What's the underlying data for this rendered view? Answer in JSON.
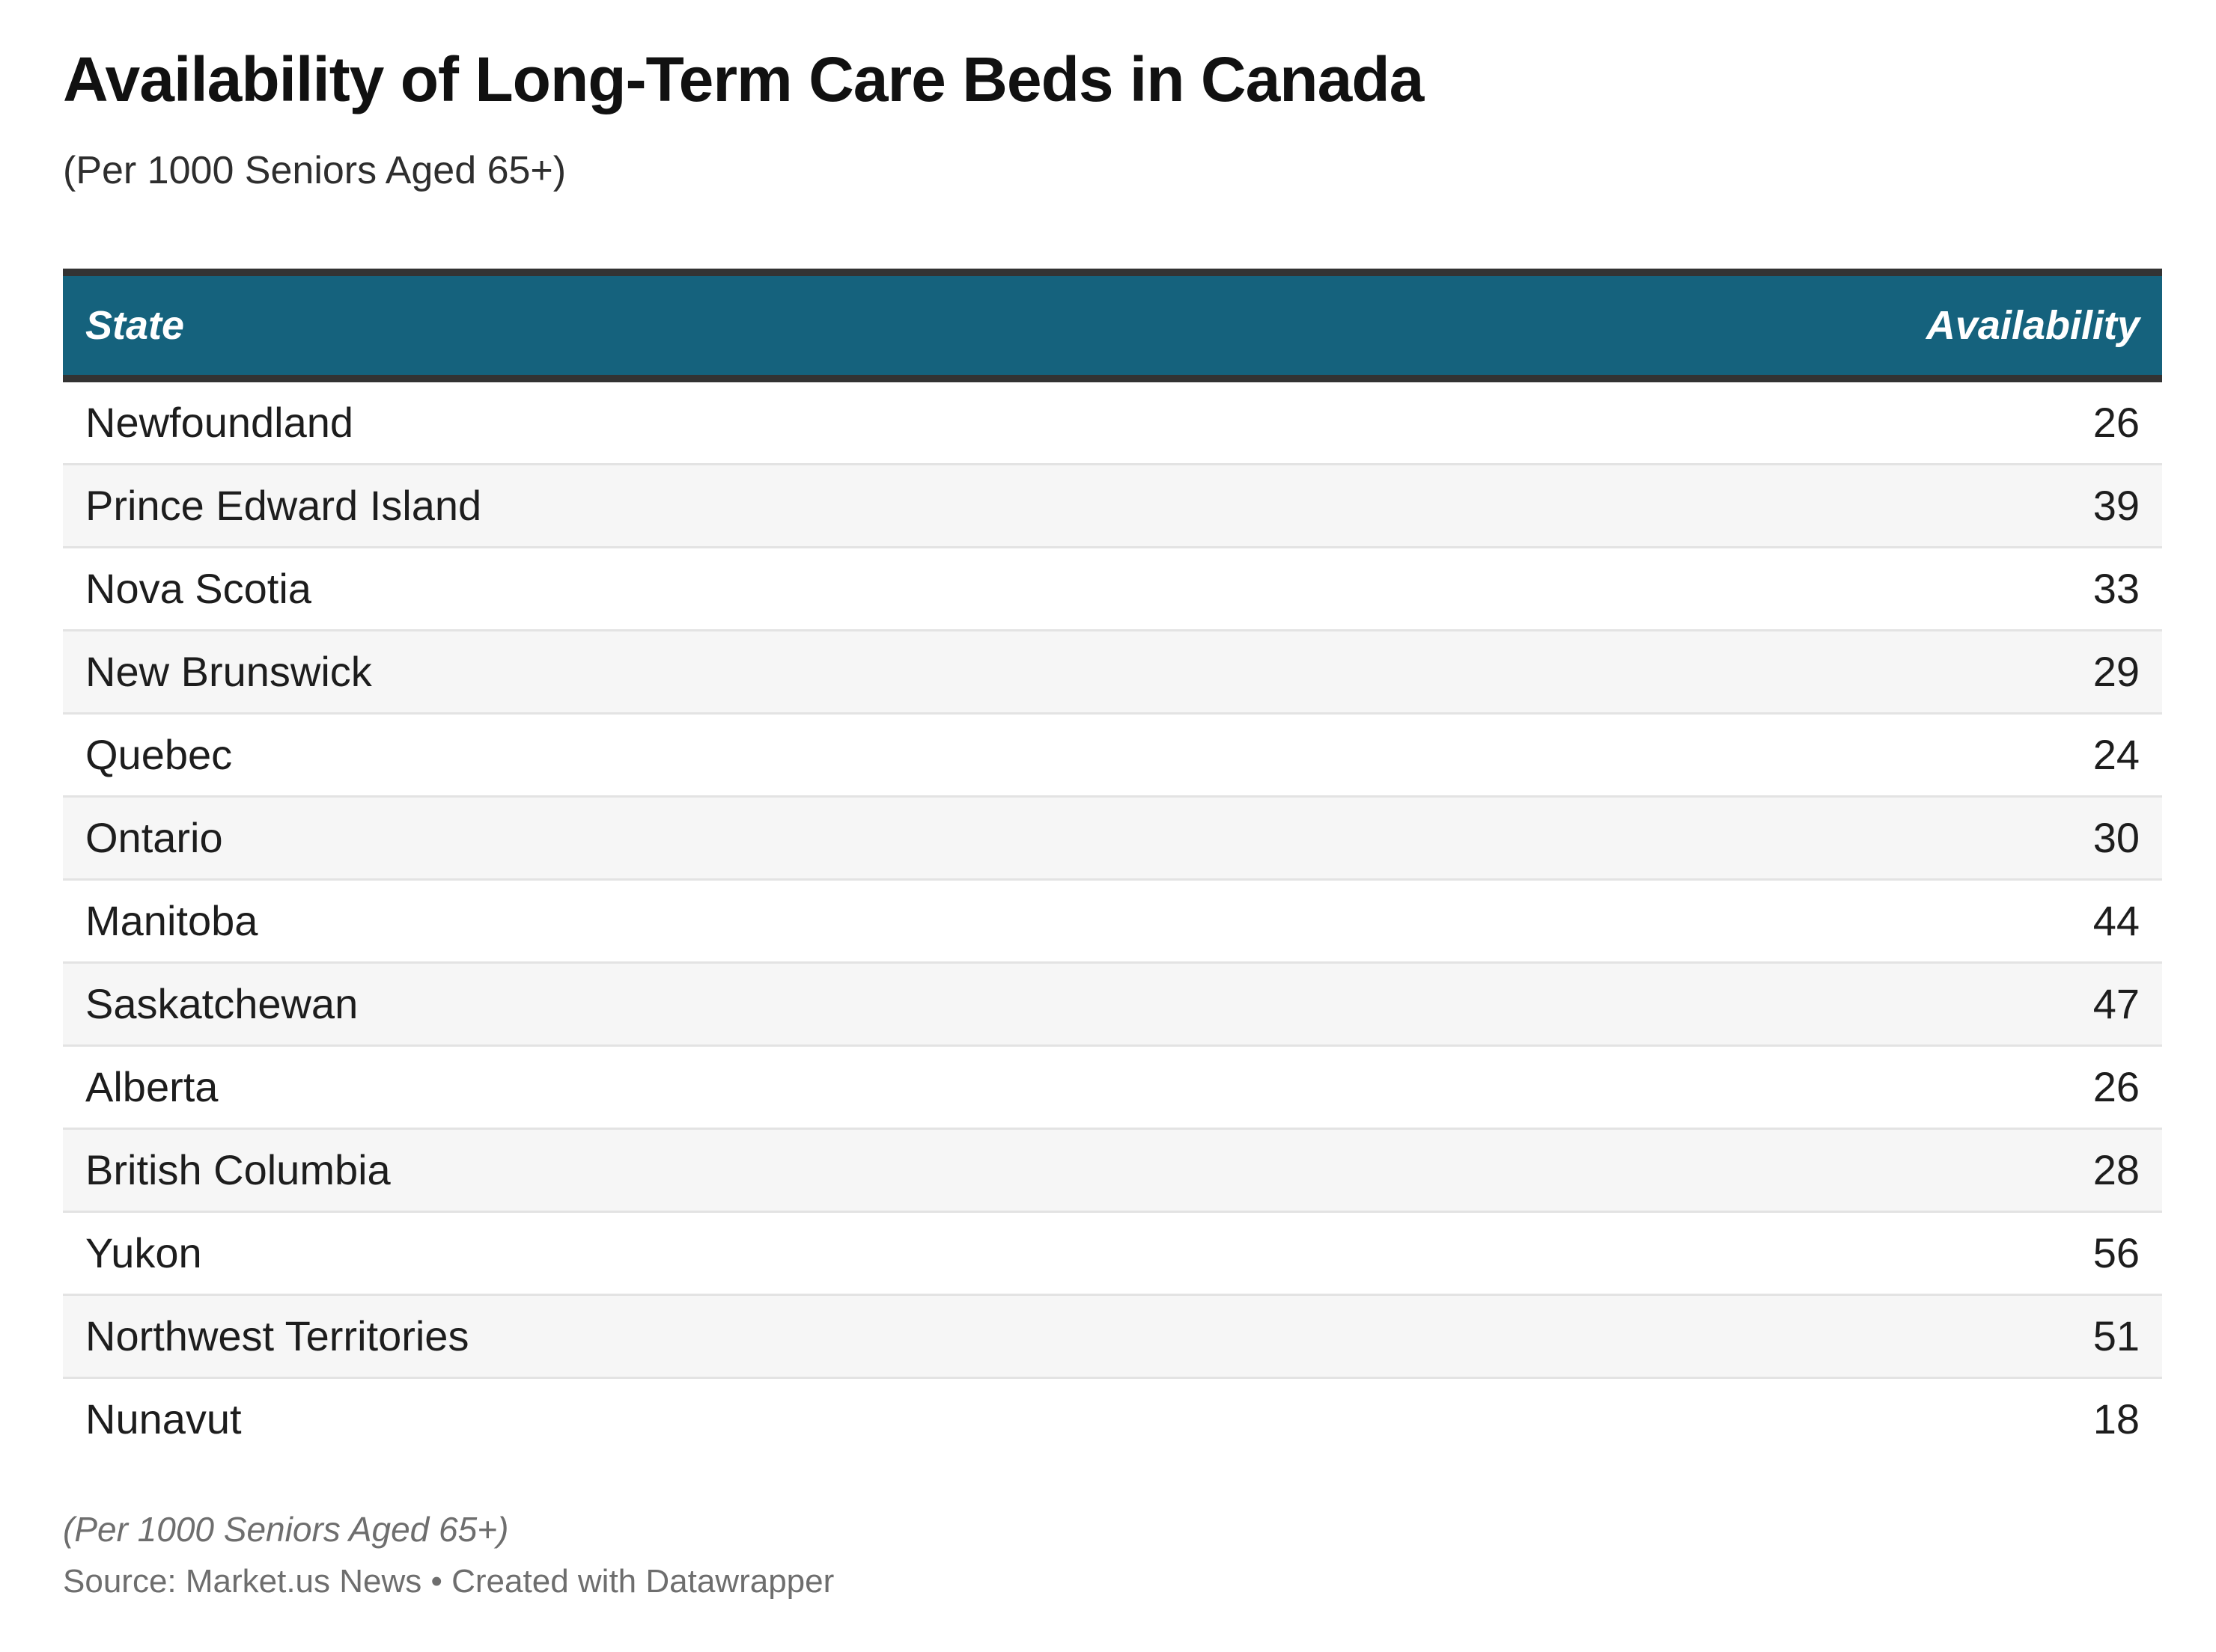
{
  "header": {
    "title": "Availability of Long-Term Care Beds in Canada",
    "subtitle": "(Per 1000 Seniors Aged 65+)"
  },
  "table": {
    "columns": [
      "State",
      "Availability"
    ],
    "rows": [
      {
        "state": "Newfoundland",
        "value": "26"
      },
      {
        "state": "Prince Edward Island",
        "value": "39"
      },
      {
        "state": "Nova Scotia",
        "value": "33"
      },
      {
        "state": "New Brunswick",
        "value": "29"
      },
      {
        "state": "Quebec",
        "value": "24"
      },
      {
        "state": "Ontario",
        "value": "30"
      },
      {
        "state": "Manitoba",
        "value": "44"
      },
      {
        "state": "Saskatchewan",
        "value": "47"
      },
      {
        "state": "Alberta",
        "value": "26"
      },
      {
        "state": "British Columbia",
        "value": "28"
      },
      {
        "state": "Yukon",
        "value": "56"
      },
      {
        "state": "Northwest Territories",
        "value": "51"
      },
      {
        "state": "Nunavut",
        "value": "18"
      }
    ]
  },
  "footer": {
    "note": "(Per 1000 Seniors Aged 65+)",
    "source": "Source: Market.us News • Created with Datawrapper"
  },
  "colors": {
    "header_bg": "#15627D",
    "header_border": "#333333",
    "alt_row_bg": "#F6F6F6",
    "row_divider": "#E3E3E3",
    "body_text": "#1D1D1D",
    "muted_text": "#6E6E6E"
  },
  "chart_data": {
    "type": "table",
    "title": "Availability of Long-Term Care Beds in Canada",
    "subtitle": "(Per 1000 Seniors Aged 65+)",
    "columns": [
      "State",
      "Availability"
    ],
    "rows": [
      [
        "Newfoundland",
        26
      ],
      [
        "Prince Edward Island",
        39
      ],
      [
        "Nova Scotia",
        33
      ],
      [
        "New Brunswick",
        29
      ],
      [
        "Quebec",
        24
      ],
      [
        "Ontario",
        30
      ],
      [
        "Manitoba",
        44
      ],
      [
        "Saskatchewan",
        47
      ],
      [
        "Alberta",
        26
      ],
      [
        "British Columbia",
        28
      ],
      [
        "Yukon",
        56
      ],
      [
        "Northwest Territories",
        51
      ],
      [
        "Nunavut",
        18
      ]
    ],
    "notes": "(Per 1000 Seniors Aged 65+)",
    "source_line": "Source: Market.us News • Created with Datawrapper",
    "layout_hints": {
      "value_alignment": "right",
      "alternating_rows": true,
      "header_style": "bold-italic-white-on-teal"
    }
  }
}
